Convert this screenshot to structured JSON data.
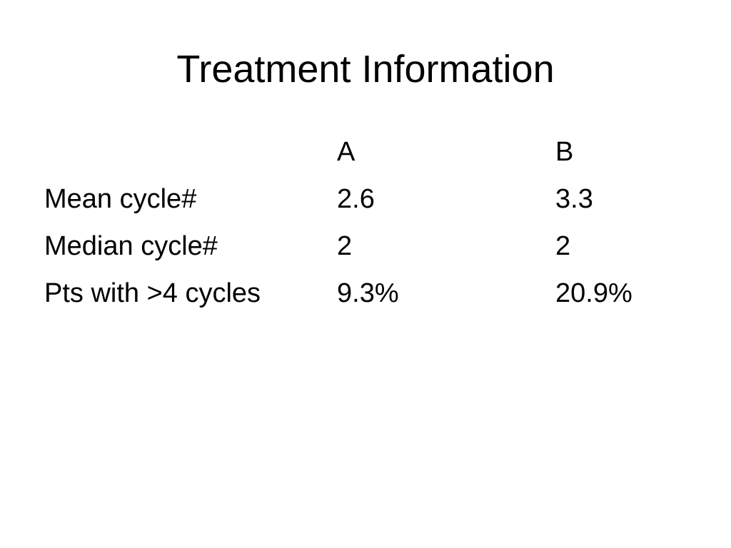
{
  "header": {
    "title": "Treatment Information"
  },
  "table": {
    "columns": [
      "",
      "A",
      "B"
    ],
    "rows": [
      [
        "Mean cycle#",
        "2.6",
        "3.3"
      ],
      [
        "Median cycle#",
        "2",
        "2"
      ],
      [
        "Pts with >4 cycles",
        "9.3%",
        "20.9%"
      ]
    ]
  }
}
